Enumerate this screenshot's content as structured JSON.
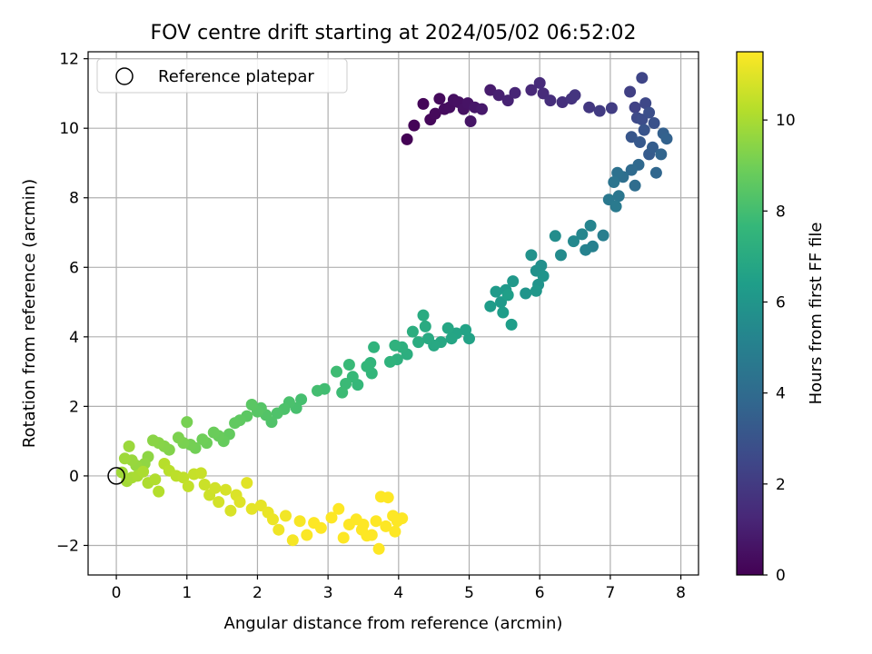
{
  "chart_data": {
    "type": "scatter",
    "title": "FOV centre drift starting at 2024/05/02 06:52:02",
    "xlabel": "Angular distance from reference (arcmin)",
    "ylabel": "Rotation from reference (arcmin)",
    "xlim": [
      -0.4,
      8.25
    ],
    "ylim": [
      -2.85,
      12.2
    ],
    "xticks": [
      0,
      1,
      2,
      3,
      4,
      5,
      6,
      7,
      8
    ],
    "xtick_labels": [
      "0",
      "1",
      "2",
      "3",
      "4",
      "5",
      "6",
      "7",
      "8"
    ],
    "yticks": [
      -2,
      0,
      2,
      4,
      6,
      8,
      10,
      12
    ],
    "ytick_labels": [
      "−2",
      "0",
      "2",
      "4",
      "6",
      "8",
      "10",
      "12"
    ],
    "grid": true,
    "legend": {
      "position": "upper-left",
      "entries": [
        "Reference platepar"
      ]
    },
    "reference_point": {
      "x": 0,
      "y": 0,
      "marker": "open-circle"
    },
    "colorbar": {
      "label": "Hours from first FF file",
      "range": [
        0,
        11.5
      ],
      "ticks": [
        0,
        2,
        4,
        6,
        8,
        10
      ],
      "tick_labels": [
        "0",
        "2",
        "4",
        "6",
        "8",
        "10"
      ],
      "colormap": "viridis"
    },
    "colors": {
      "viridis": [
        "#440154",
        "#482878",
        "#3e4989",
        "#31688e",
        "#26828e",
        "#1f9e89",
        "#35b779",
        "#6ece58",
        "#b5de2b",
        "#fde725"
      ],
      "grid": "#b0b0b0",
      "axes": "#000000"
    },
    "series": [
      {
        "points": [
          [
            4.12,
            9.68,
            0.05
          ],
          [
            4.22,
            10.08,
            0.1
          ],
          [
            4.35,
            10.7,
            0.15
          ],
          [
            4.45,
            10.25,
            0.2
          ],
          [
            4.52,
            10.42,
            0.25
          ],
          [
            4.58,
            10.85,
            0.3
          ],
          [
            4.65,
            10.55,
            0.35
          ],
          [
            4.72,
            10.6,
            0.4
          ],
          [
            4.78,
            10.82,
            0.45
          ],
          [
            4.85,
            10.75,
            0.5
          ],
          [
            4.92,
            10.55,
            0.55
          ],
          [
            4.98,
            10.72,
            0.6
          ],
          [
            5.02,
            10.2,
            0.65
          ],
          [
            5.08,
            10.6,
            0.7
          ],
          [
            5.18,
            10.55,
            0.8
          ],
          [
            5.3,
            11.1,
            0.9
          ],
          [
            5.42,
            10.95,
            1.0
          ],
          [
            5.55,
            10.8,
            1.1
          ],
          [
            5.65,
            11.02,
            1.2
          ],
          [
            5.88,
            11.1,
            1.3
          ],
          [
            6.0,
            11.3,
            1.4
          ],
          [
            6.05,
            11.0,
            1.45
          ],
          [
            6.15,
            10.8,
            1.5
          ],
          [
            6.32,
            10.75,
            1.6
          ],
          [
            6.45,
            10.85,
            1.7
          ],
          [
            6.5,
            10.95,
            1.8
          ],
          [
            6.7,
            10.6,
            1.9
          ],
          [
            6.85,
            10.5,
            2.0
          ],
          [
            7.02,
            10.58,
            2.1
          ],
          [
            7.28,
            11.05,
            2.2
          ],
          [
            7.35,
            10.6,
            2.3
          ],
          [
            7.45,
            11.45,
            2.4
          ],
          [
            7.5,
            10.72,
            2.5
          ],
          [
            7.38,
            10.3,
            2.6
          ],
          [
            7.45,
            10.25,
            2.7
          ],
          [
            7.55,
            10.45,
            2.8
          ],
          [
            7.62,
            10.15,
            2.9
          ],
          [
            7.48,
            9.95,
            3.0
          ],
          [
            7.3,
            9.75,
            3.1
          ],
          [
            7.42,
            9.6,
            3.2
          ],
          [
            7.55,
            9.25,
            3.3
          ],
          [
            7.6,
            9.45,
            3.4
          ],
          [
            7.75,
            9.85,
            3.5
          ],
          [
            7.8,
            9.7,
            3.6
          ],
          [
            7.72,
            9.25,
            3.7
          ],
          [
            7.65,
            8.72,
            3.8
          ],
          [
            7.4,
            8.95,
            3.9
          ],
          [
            7.3,
            8.8,
            4.0
          ],
          [
            7.35,
            8.35,
            4.1
          ],
          [
            7.18,
            8.6,
            4.2
          ],
          [
            7.1,
            8.72,
            4.3
          ],
          [
            7.05,
            8.45,
            4.4
          ],
          [
            7.12,
            8.05,
            4.5
          ],
          [
            6.98,
            7.95,
            4.6
          ],
          [
            7.08,
            7.75,
            4.7
          ],
          [
            6.9,
            6.92,
            4.9
          ],
          [
            6.75,
            6.6,
            5.0
          ],
          [
            6.65,
            6.5,
            5.1
          ],
          [
            6.72,
            7.2,
            5.2
          ],
          [
            6.6,
            6.95,
            5.3
          ],
          [
            6.48,
            6.75,
            5.4
          ],
          [
            6.3,
            6.35,
            5.5
          ],
          [
            6.22,
            6.9,
            5.6
          ],
          [
            6.02,
            6.05,
            5.7
          ],
          [
            5.95,
            5.9,
            5.8
          ],
          [
            5.88,
            6.35,
            5.85
          ],
          [
            5.98,
            5.5,
            5.9
          ],
          [
            6.05,
            5.75,
            5.95
          ],
          [
            5.8,
            5.25,
            6.0
          ],
          [
            5.95,
            5.32,
            6.05
          ],
          [
            5.62,
            5.6,
            6.1
          ],
          [
            5.52,
            5.35,
            6.15
          ],
          [
            5.45,
            5.0,
            6.2
          ],
          [
            5.38,
            5.3,
            6.25
          ],
          [
            5.3,
            4.88,
            6.3
          ],
          [
            5.48,
            4.7,
            6.35
          ],
          [
            5.6,
            4.35,
            6.4
          ],
          [
            5.55,
            5.2,
            6.45
          ],
          [
            5.0,
            3.95,
            6.6
          ],
          [
            4.95,
            4.2,
            6.65
          ],
          [
            4.82,
            4.1,
            6.7
          ],
          [
            4.75,
            3.95,
            6.75
          ],
          [
            4.7,
            4.25,
            6.8
          ],
          [
            4.6,
            3.85,
            6.85
          ],
          [
            4.5,
            3.75,
            6.9
          ],
          [
            4.42,
            3.95,
            6.95
          ],
          [
            4.38,
            4.3,
            7.0
          ],
          [
            4.35,
            4.62,
            7.05
          ],
          [
            4.28,
            3.85,
            7.1
          ],
          [
            4.2,
            4.15,
            7.15
          ],
          [
            4.12,
            3.5,
            7.2
          ],
          [
            4.05,
            3.7,
            7.25
          ],
          [
            3.98,
            3.35,
            7.3
          ],
          [
            3.95,
            3.75,
            7.35
          ],
          [
            3.88,
            3.28,
            7.4
          ],
          [
            3.65,
            3.7,
            7.45
          ],
          [
            3.6,
            3.25,
            7.5
          ],
          [
            3.62,
            2.95,
            7.55
          ],
          [
            3.55,
            3.15,
            7.6
          ],
          [
            3.42,
            2.62,
            7.65
          ],
          [
            3.35,
            2.85,
            7.7
          ],
          [
            3.3,
            3.2,
            7.75
          ],
          [
            3.25,
            2.65,
            7.8
          ],
          [
            3.2,
            2.4,
            7.85
          ],
          [
            3.12,
            3.0,
            7.9
          ],
          [
            2.95,
            2.5,
            7.95
          ],
          [
            2.85,
            2.45,
            8.0
          ],
          [
            2.62,
            2.2,
            8.05
          ],
          [
            2.55,
            1.95,
            8.1
          ],
          [
            2.45,
            2.12,
            8.15
          ],
          [
            2.38,
            1.92,
            8.2
          ],
          [
            2.28,
            1.8,
            8.25
          ],
          [
            2.2,
            1.55,
            8.3
          ],
          [
            2.12,
            1.75,
            8.35
          ],
          [
            2.05,
            1.95,
            8.4
          ],
          [
            2.0,
            1.85,
            8.45
          ],
          [
            1.92,
            2.05,
            8.5
          ],
          [
            1.85,
            1.72,
            8.55
          ],
          [
            1.75,
            1.6,
            8.6
          ],
          [
            1.68,
            1.52,
            8.65
          ],
          [
            1.6,
            1.2,
            8.7
          ],
          [
            1.52,
            1.0,
            8.75
          ],
          [
            1.45,
            1.15,
            8.8
          ],
          [
            1.38,
            1.25,
            8.85
          ],
          [
            1.28,
            0.95,
            8.9
          ],
          [
            1.22,
            1.05,
            8.95
          ],
          [
            1.12,
            0.8,
            9.0
          ],
          [
            1.05,
            0.9,
            9.05
          ],
          [
            1.0,
            1.55,
            9.1
          ],
          [
            0.95,
            0.95,
            9.15
          ],
          [
            0.88,
            1.1,
            9.2
          ],
          [
            0.75,
            0.75,
            9.3
          ],
          [
            0.68,
            0.85,
            9.35
          ],
          [
            0.6,
            0.95,
            9.4
          ],
          [
            0.52,
            1.02,
            9.45
          ],
          [
            0.45,
            0.55,
            9.5
          ],
          [
            0.4,
            0.35,
            9.55
          ],
          [
            0.35,
            0.15,
            9.6
          ],
          [
            0.28,
            0.3,
            9.65
          ],
          [
            0.22,
            0.45,
            9.7
          ],
          [
            0.18,
            0.85,
            9.75
          ],
          [
            0.12,
            0.5,
            9.8
          ],
          [
            0.08,
            0.1,
            9.85
          ],
          [
            0.15,
            -0.15,
            9.9
          ],
          [
            0.22,
            -0.05,
            9.95
          ],
          [
            0.3,
            0.0,
            10.0
          ],
          [
            0.38,
            0.12,
            10.05
          ],
          [
            0.45,
            -0.2,
            10.1
          ],
          [
            0.55,
            -0.1,
            10.15
          ],
          [
            0.6,
            -0.45,
            10.2
          ],
          [
            0.68,
            0.35,
            10.25
          ],
          [
            0.75,
            0.15,
            10.3
          ],
          [
            0.85,
            0.0,
            10.35
          ],
          [
            0.95,
            -0.05,
            10.4
          ],
          [
            1.02,
            -0.3,
            10.45
          ],
          [
            1.1,
            0.05,
            10.5
          ],
          [
            1.2,
            0.08,
            10.55
          ],
          [
            1.25,
            -0.25,
            10.6
          ],
          [
            1.32,
            -0.55,
            10.65
          ],
          [
            1.4,
            -0.35,
            10.7
          ],
          [
            1.45,
            -0.75,
            10.75
          ],
          [
            1.55,
            -0.4,
            10.8
          ],
          [
            1.62,
            -1.0,
            10.85
          ],
          [
            1.7,
            -0.55,
            10.9
          ],
          [
            1.75,
            -0.75,
            10.95
          ],
          [
            1.85,
            -0.2,
            11.0
          ],
          [
            1.92,
            -0.95,
            11.05
          ],
          [
            2.05,
            -0.85,
            11.1
          ],
          [
            2.15,
            -1.05,
            11.15
          ],
          [
            2.22,
            -1.25,
            11.2
          ],
          [
            2.3,
            -1.55,
            11.25
          ],
          [
            2.4,
            -1.15,
            11.3
          ],
          [
            2.5,
            -1.85,
            11.35
          ],
          [
            2.6,
            -1.3,
            11.4
          ],
          [
            2.7,
            -1.7,
            11.45
          ],
          [
            2.8,
            -1.35,
            11.5
          ],
          [
            2.9,
            -1.5,
            11.5
          ],
          [
            3.05,
            -1.2,
            11.5
          ],
          [
            3.15,
            -0.95,
            11.5
          ],
          [
            3.22,
            -1.78,
            11.5
          ],
          [
            3.3,
            -1.4,
            11.5
          ],
          [
            3.4,
            -1.25,
            11.5
          ],
          [
            3.48,
            -1.55,
            11.5
          ],
          [
            3.55,
            -1.72,
            11.5
          ],
          [
            3.62,
            -1.7,
            11.5
          ],
          [
            3.72,
            -2.1,
            11.5
          ],
          [
            3.75,
            -0.6,
            11.5
          ],
          [
            3.85,
            -0.62,
            11.5
          ],
          [
            3.92,
            -1.15,
            11.5
          ],
          [
            3.98,
            -1.3,
            11.5
          ],
          [
            4.05,
            -1.22,
            11.5
          ],
          [
            3.95,
            -1.6,
            11.5
          ],
          [
            3.82,
            -1.45,
            11.5
          ],
          [
            3.68,
            -1.3,
            11.5
          ],
          [
            3.5,
            -1.4,
            11.5
          ]
        ]
      }
    ]
  }
}
